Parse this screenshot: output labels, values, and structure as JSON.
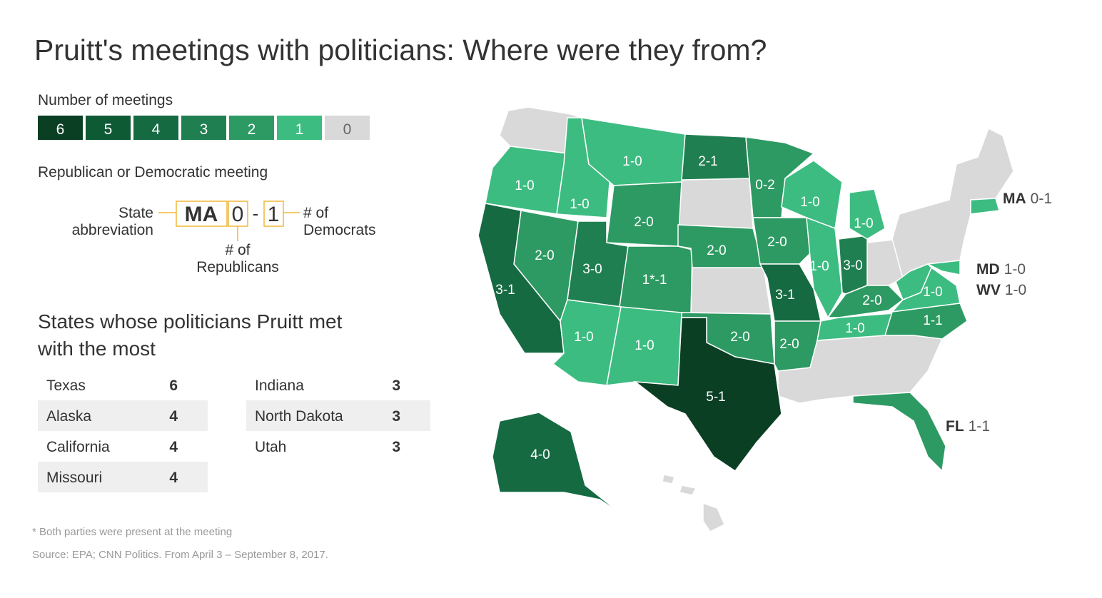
{
  "title": "Pruitt's meetings with politicians: Where were they from?",
  "legend": {
    "title": "Number of meetings",
    "levels": [
      {
        "value": 6,
        "color": "#0a3f24"
      },
      {
        "value": 5,
        "color": "#0e5a35"
      },
      {
        "value": 4,
        "color": "#156a42"
      },
      {
        "value": 3,
        "color": "#207f51"
      },
      {
        "value": 2,
        "color": "#2e9a63"
      },
      {
        "value": 1,
        "color": "#3dbc81"
      },
      {
        "value": 0,
        "color": "#d9d9d9"
      }
    ]
  },
  "key": {
    "title": "Republican or Democratic meeting",
    "state_label": [
      "State",
      "abbreviation"
    ],
    "abbr": "MA",
    "republicans": "0",
    "dash": "-",
    "democrats": "1",
    "dem_label": [
      "# of",
      "Democrats"
    ],
    "rep_label": [
      "# of",
      "Republicans"
    ]
  },
  "table": {
    "title": [
      "States whose politicians Pruitt met",
      "with the most"
    ],
    "rows": [
      [
        "Texas",
        6
      ],
      [
        "Alaska",
        4
      ],
      [
        "California",
        4
      ],
      [
        "Missouri",
        4
      ],
      [
        "Indiana",
        3
      ],
      [
        "North Dakota",
        3
      ],
      [
        "Utah",
        3
      ]
    ]
  },
  "map": {
    "states": [
      {
        "label": "1-0",
        "meetings": 1
      },
      {
        "label": "1-0",
        "meetings": 1
      },
      {
        "label": "1-0",
        "meetings": 1
      },
      {
        "label": "2-0",
        "meetings": 2
      },
      {
        "label": "2-0",
        "meetings": 2
      },
      {
        "label": "3-1",
        "meetings": 4
      },
      {
        "label": "3-0",
        "meetings": 3
      },
      {
        "label": "1*-1",
        "meetings": 2
      },
      {
        "label": "1-0",
        "meetings": 1
      },
      {
        "label": "1-0",
        "meetings": 1
      },
      {
        "label": "2-1",
        "meetings": 3
      },
      {
        "label": "2-0",
        "meetings": 2
      },
      {
        "label": "2-0",
        "meetings": 2
      },
      {
        "label": "5-1",
        "meetings": 6
      },
      {
        "label": "0-2",
        "meetings": 2
      },
      {
        "label": "2-0",
        "meetings": 2
      },
      {
        "label": "3-1",
        "meetings": 4
      },
      {
        "label": "2-0",
        "meetings": 2
      },
      {
        "label": "1-0",
        "meetings": 1
      },
      {
        "label": "1-0",
        "meetings": 1
      },
      {
        "label": "3-0",
        "meetings": 3
      },
      {
        "label": "1-0",
        "meetings": 1
      },
      {
        "label": "2-0",
        "meetings": 2
      },
      {
        "label": "1-0",
        "meetings": 1
      },
      {
        "label": "1-0",
        "meetings": 1
      },
      {
        "label": "1-1",
        "meetings": 2
      },
      {
        "label": "4-0",
        "meetings": 4
      }
    ],
    "callouts": [
      {
        "abbr": "MA",
        "label": "0-1",
        "meetings": 1
      },
      {
        "abbr": "MD",
        "label": "1-0",
        "meetings": 1
      },
      {
        "abbr": "WV",
        "label": "1-0",
        "meetings": 1
      },
      {
        "abbr": "FL",
        "label": "1-1",
        "meetings": 2
      }
    ]
  },
  "footnote": "* Both parties were present at the meeting",
  "source": "Source: EPA; CNN Politics. From April 3 – September 8, 2017."
}
